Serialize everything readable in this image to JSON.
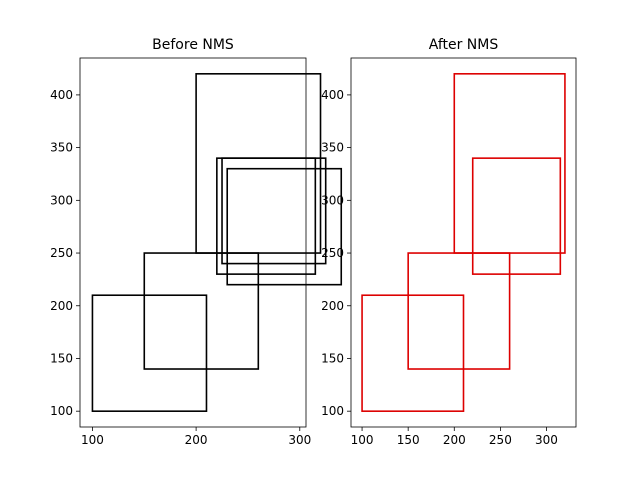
{
  "chart_data": [
    {
      "type": "box-plot-rectangles",
      "title": "Before NMS",
      "xlim": [
        88,
        306
      ],
      "ylim": [
        85,
        435
      ],
      "xticks": [
        100,
        200,
        300
      ],
      "yticks": [
        100,
        150,
        200,
        250,
        300,
        350,
        400
      ],
      "box_color": "#000000",
      "boxes": [
        {
          "x1": 100,
          "y1": 100,
          "x2": 210,
          "y2": 210
        },
        {
          "x1": 150,
          "y1": 140,
          "x2": 260,
          "y2": 250
        },
        {
          "x1": 200,
          "y1": 250,
          "x2": 320,
          "y2": 420
        },
        {
          "x1": 220,
          "y1": 230,
          "x2": 315,
          "y2": 340
        },
        {
          "x1": 225,
          "y1": 240,
          "x2": 325,
          "y2": 340
        },
        {
          "x1": 230,
          "y1": 220,
          "x2": 340,
          "y2": 330
        }
      ]
    },
    {
      "type": "box-plot-rectangles",
      "title": "After NMS",
      "xlim": [
        88,
        332
      ],
      "ylim": [
        85,
        435
      ],
      "xticks": [
        100,
        150,
        200,
        250,
        300
      ],
      "yticks": [
        100,
        150,
        200,
        250,
        300,
        350,
        400
      ],
      "box_color": "#dd0000",
      "boxes": [
        {
          "x1": 100,
          "y1": 100,
          "x2": 210,
          "y2": 210
        },
        {
          "x1": 150,
          "y1": 140,
          "x2": 260,
          "y2": 250
        },
        {
          "x1": 200,
          "y1": 250,
          "x2": 320,
          "y2": 420
        },
        {
          "x1": 220,
          "y1": 230,
          "x2": 315,
          "y2": 340
        }
      ]
    }
  ]
}
